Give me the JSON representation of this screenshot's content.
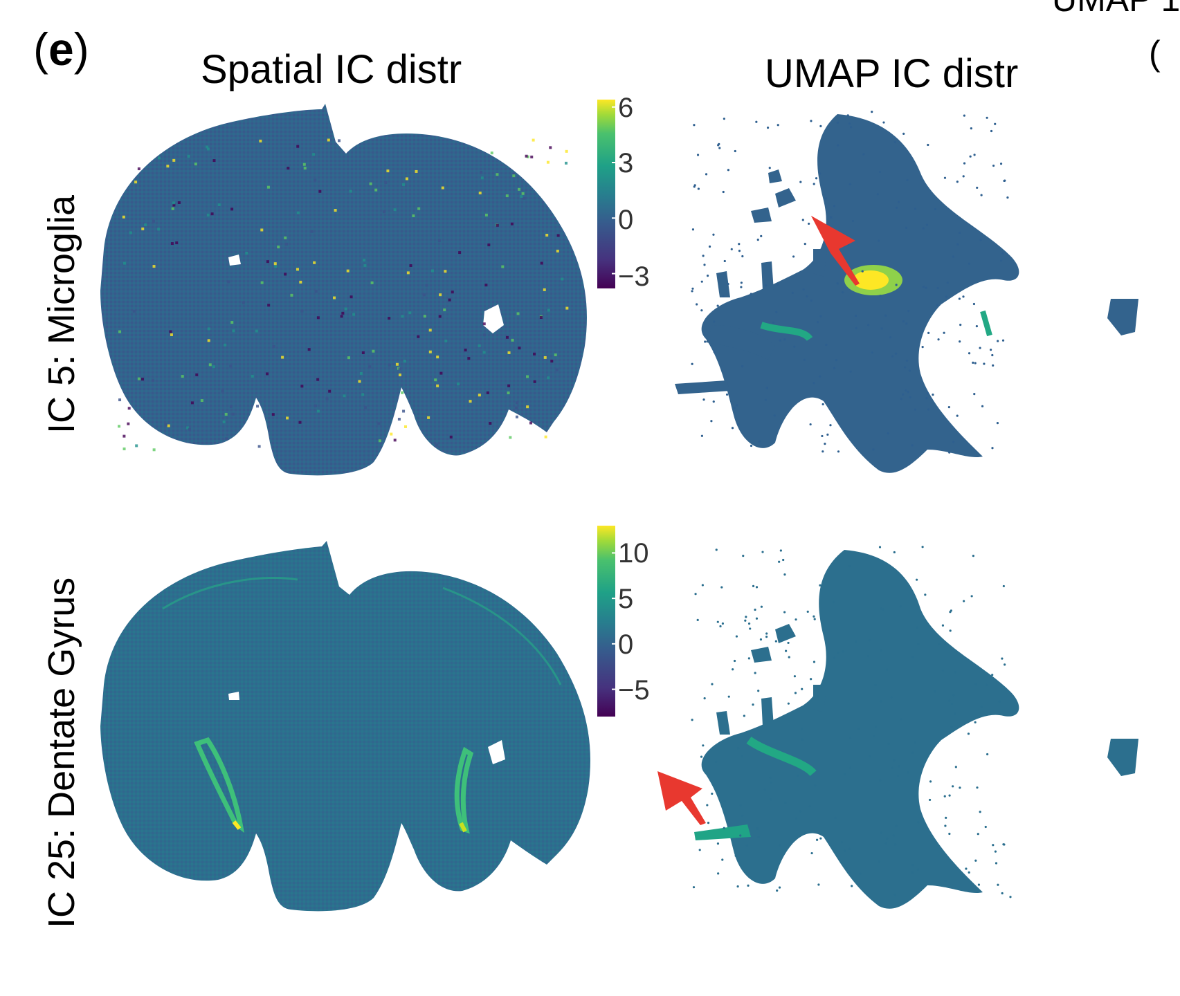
{
  "figure": {
    "panel_label": "e",
    "corner_fragment_top": "UMAP 1",
    "corner_fragment_right": "(",
    "column_titles": [
      "Spatial IC distr",
      "UMAP IC distr"
    ],
    "rows": [
      {
        "title": "IC 5: Microglia",
        "colorbar_ticks": [
          "6",
          "3",
          "0",
          "−3"
        ],
        "colorbar_values": [
          6,
          3,
          0,
          -3
        ],
        "colorbar_range": [
          -3.8,
          6.4
        ]
      },
      {
        "title": "IC 25: Dentate Gyrus",
        "colorbar_ticks": [
          "10",
          "5",
          "0",
          "−5"
        ],
        "colorbar_values": [
          10,
          5,
          0,
          -5
        ],
        "colorbar_range": [
          -8,
          13
        ]
      }
    ],
    "colors": {
      "viridis_low": "#440154",
      "viridis_mid": "#2c6f8e",
      "viridis_hi": "#fde725",
      "arrow": "#e8382f"
    }
  }
}
